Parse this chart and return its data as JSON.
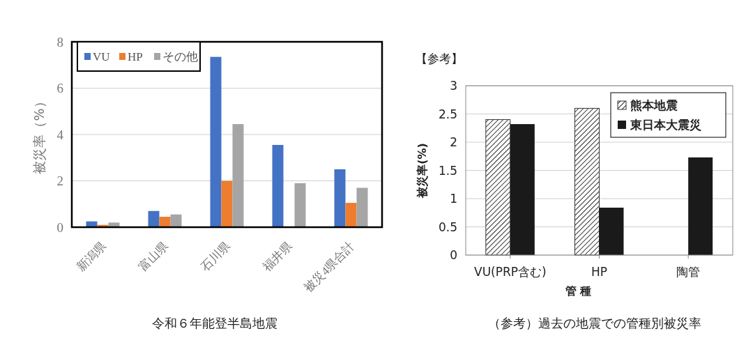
{
  "chart_data": [
    {
      "type": "bar",
      "title": "令和６年能登半島地震",
      "ylabel": "被災率（%）",
      "categories": [
        "新潟県",
        "富山県",
        "石川県",
        "福井県",
        "被災4県合計"
      ],
      "series": [
        {
          "name": "VU",
          "color": "#4472c4",
          "values": [
            0.25,
            0.7,
            7.35,
            3.55,
            2.5
          ]
        },
        {
          "name": "HP",
          "color": "#ed7d31",
          "values": [
            0.1,
            0.45,
            2.0,
            null,
            1.05
          ]
        },
        {
          "name": "その他",
          "color": "#a5a5a5",
          "values": [
            0.2,
            0.55,
            4.45,
            1.9,
            1.7
          ]
        }
      ],
      "ylim": [
        0,
        8
      ],
      "yticks": [
        0,
        2,
        4,
        6,
        8
      ],
      "grid": "y",
      "legend": "top left"
    },
    {
      "type": "bar",
      "title": "（参考）過去の地震での管種別被災率",
      "annotations": [
        "【参考】"
      ],
      "xlabel": "管 種",
      "ylabel": "被災率(%)",
      "categories": [
        "VU(PRP含む)",
        "HP",
        "陶管"
      ],
      "series": [
        {
          "name": "熊本地震",
          "color": "#333333",
          "values": [
            2.4,
            2.6,
            null
          ]
        },
        {
          "name": "東日本大震災",
          "color": "#1a1a1a",
          "values": [
            2.32,
            0.84,
            1.73
          ]
        }
      ],
      "ylim": [
        0,
        3
      ],
      "yticks": [
        0,
        0.5,
        1,
        1.5,
        2,
        2.5,
        3
      ],
      "grid": "y",
      "legend": "top right"
    }
  ]
}
